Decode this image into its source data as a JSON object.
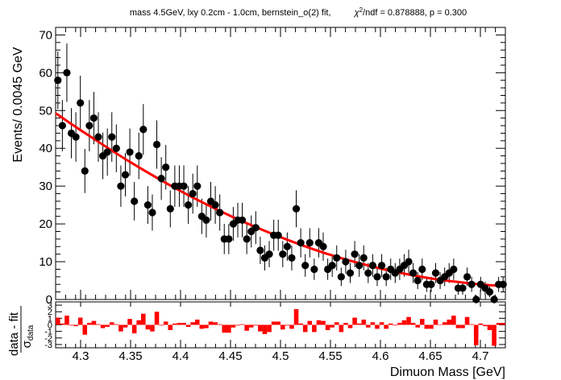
{
  "chart_data": {
    "type": "scatter",
    "title": "mass 4.5GeV, lxy 0.2cm - 1.0cm, bernstein_o(2) fit,",
    "fit_stats": {
      "chi2_label": "χ",
      "chi2_sup": "2",
      "chi2_value": "/ndf = 0.878888, p = 0.300"
    },
    "xlabel": "Dimuon Mass [GeV]",
    "ylabel": "Events/ 0.0045 GeV",
    "xlim": [
      4.275,
      4.725
    ],
    "ylim": [
      0,
      72
    ],
    "x_ticks": [
      4.3,
      4.35,
      4.4,
      4.45,
      4.5,
      4.55,
      4.6,
      4.65,
      4.7
    ],
    "x_tick_labels": [
      "4.3",
      "4.35",
      "4.4",
      "4.45",
      "4.5",
      "4.55",
      "4.6",
      "4.65",
      "4.7"
    ],
    "y_ticks": [
      0,
      10,
      20,
      30,
      40,
      50,
      60,
      70
    ],
    "y_tick_labels": [
      "0",
      "10",
      "20",
      "30",
      "40",
      "50",
      "60",
      "70"
    ],
    "grid": false,
    "data_color": "#000000",
    "fit_color": "#ff0000",
    "bin_centers": [
      4.27725,
      4.28175,
      4.28625,
      4.29075,
      4.29525,
      4.29975,
      4.30425,
      4.30875,
      4.31325,
      4.31775,
      4.32225,
      4.32675,
      4.33125,
      4.33575,
      4.34025,
      4.34475,
      4.34925,
      4.35375,
      4.35825,
      4.36275,
      4.36725,
      4.37175,
      4.37625,
      4.38075,
      4.38525,
      4.38975,
      4.39425,
      4.39875,
      4.40325,
      4.40775,
      4.41225,
      4.41675,
      4.42125,
      4.42575,
      4.43025,
      4.43475,
      4.43925,
      4.44375,
      4.44825,
      4.45275,
      4.45725,
      4.46175,
      4.46625,
      4.47075,
      4.47525,
      4.47975,
      4.48425,
      4.48875,
      4.49325,
      4.49775,
      4.50225,
      4.50675,
      4.51125,
      4.51575,
      4.52025,
      4.52475,
      4.52925,
      4.53375,
      4.53825,
      4.54275,
      4.54725,
      4.55175,
      4.55625,
      4.56075,
      4.56525,
      4.56975,
      4.57425,
      4.57875,
      4.58325,
      4.58775,
      4.59225,
      4.59675,
      4.60125,
      4.60575,
      4.61025,
      4.61475,
      4.61925,
      4.62375,
      4.62825,
      4.63275,
      4.63725,
      4.64175,
      4.64625,
      4.65075,
      4.65525,
      4.65975,
      4.66425,
      4.66875,
      4.67325,
      4.67775,
      4.68225,
      4.68675,
      4.69125,
      4.69575,
      4.70025,
      4.70475,
      4.70925,
      4.71375,
      4.71825,
      4.72275
    ],
    "counts": [
      58,
      46,
      60,
      44,
      43,
      52,
      34,
      46,
      48,
      43,
      38,
      39,
      43,
      40,
      30,
      33,
      39,
      26,
      38,
      45,
      25,
      23,
      41,
      32,
      35,
      24,
      30,
      30,
      30,
      25,
      28,
      30,
      22,
      21,
      26,
      25,
      23,
      16,
      16,
      20,
      21,
      21,
      16,
      18,
      19,
      13,
      11,
      12,
      17,
      17,
      12,
      14,
      11,
      24,
      15,
      9,
      15,
      8,
      15,
      14,
      8,
      9,
      11,
      6,
      10,
      7,
      12,
      9,
      11,
      7,
      9,
      6,
      9,
      6,
      8,
      7,
      8,
      9,
      10,
      7,
      5,
      8,
      4,
      4,
      7,
      5,
      6,
      7,
      8,
      3,
      3,
      6,
      4,
      0,
      4,
      3,
      2,
      0,
      4,
      4
    ],
    "fit_curve": {
      "name": "bernstein_o(2)",
      "x": [
        4.275,
        4.3,
        4.35,
        4.4,
        4.45,
        4.5,
        4.55,
        4.6,
        4.65,
        4.7,
        4.725
      ],
      "y": [
        49.3,
        44.8,
        36.3,
        28.7,
        22.1,
        16.5,
        11.8,
        8.2,
        5.6,
        4.0,
        3.6
      ]
    },
    "pull_panel": {
      "ylabel_num": "data - fit",
      "ylabel_den_symbol": "σ",
      "ylabel_den_sub": "data",
      "ylim": [
        -3.5,
        3.5
      ],
      "y_ticks": [
        -3,
        -2,
        -1,
        0,
        1,
        2,
        3
      ],
      "y_tick_labels": [
        "-3",
        "-2",
        "-1",
        "0",
        "1",
        "2",
        "3"
      ],
      "bar_color": "#ff0000",
      "pulls": [
        1.1,
        0.2,
        1.4,
        -0.1,
        -0.2,
        1.1,
        -1.5,
        0.3,
        0.6,
        0.1,
        -0.5,
        -0.3,
        0.4,
        0.1,
        -1.0,
        -0.4,
        0.9,
        -1.3,
        0.7,
        1.7,
        -0.7,
        -1.0,
        2.0,
        -0.1,
        0.5,
        -0.8,
        0.2,
        0.3,
        0.3,
        -0.3,
        0.4,
        0.8,
        -0.6,
        -0.5,
        0.5,
        0.4,
        0.1,
        -1.2,
        -1.2,
        -0.4,
        -0.1,
        0.1,
        -0.9,
        -0.4,
        -0.1,
        -1.0,
        -1.4,
        -1.1,
        0.5,
        0.5,
        -0.7,
        -0.1,
        -0.6,
        2.4,
        0.2,
        -1.1,
        0.6,
        -1.1,
        0.7,
        0.6,
        -0.8,
        -0.4,
        0.4,
        -1.1,
        0.3,
        -0.5,
        1.1,
        0.2,
        0.8,
        -0.4,
        0.4,
        -0.6,
        0.4,
        -0.6,
        0.2,
        -0.1,
        0.3,
        0.7,
        1.2,
        0.3,
        -0.4,
        0.9,
        -0.6,
        -0.6,
        0.8,
        0.0,
        0.4,
        0.8,
        1.4,
        -0.5,
        -0.5,
        1.2,
        0.1,
        -3.1,
        0.2,
        -0.2,
        -0.8,
        -3.2,
        0.3,
        0.3
      ]
    }
  }
}
